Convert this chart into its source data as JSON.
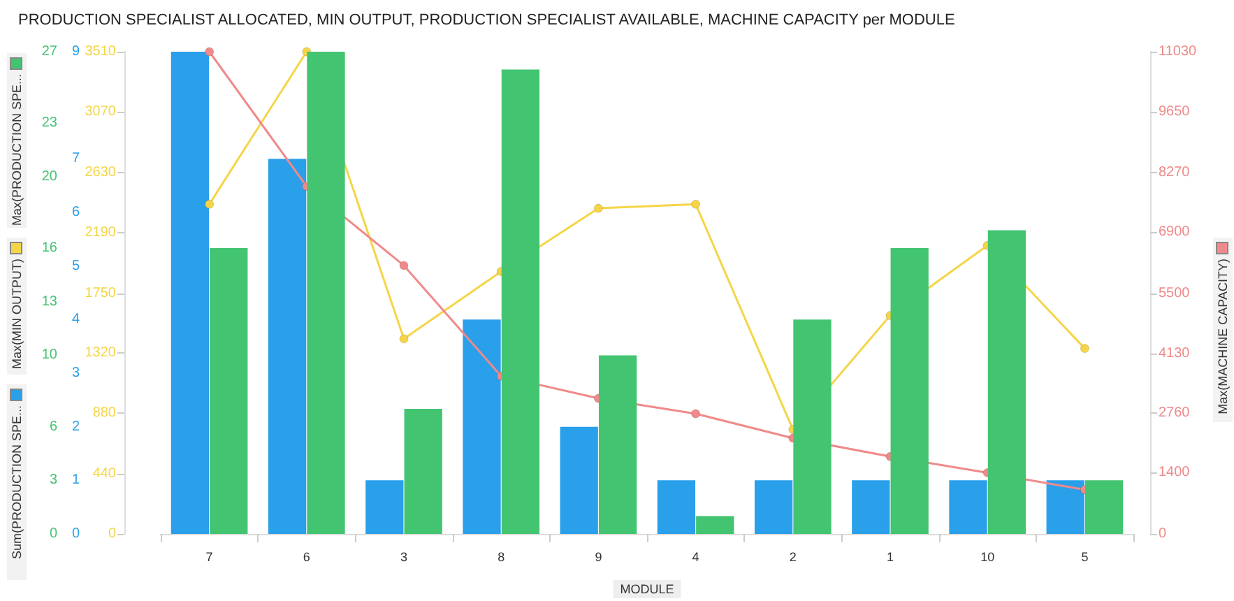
{
  "chart_data": [
    {
      "type": "bar",
      "title": "PRODUCTION SPECIALIST ALLOCATED, MIN OUTPUT, PRODUCTION SPECIALIST AVAILABLE, MACHINE CAPACITY per MODULE",
      "xlabel": "MODULE",
      "categories": [
        "7",
        "6",
        "3",
        "8",
        "9",
        "4",
        "2",
        "1",
        "10",
        "5"
      ],
      "series": [
        {
          "name": "Sum(PRODUCTION SPE...",
          "color": "#2a9fea",
          "values": [
            9,
            7,
            1,
            4,
            2,
            1,
            1,
            1,
            1,
            1
          ]
        },
        {
          "name": "Max(MIN OUTPUT)",
          "type": "line",
          "axis": "y3",
          "color": "#f5d547",
          "values": [
            2400,
            3510,
            1420,
            1910,
            2370,
            2400,
            760,
            1590,
            2100,
            1350
          ]
        },
        {
          "name": "Max(MACHINE CAPACITY)",
          "type": "line",
          "axis": "y2",
          "color": "#f08a8a",
          "values": [
            11030,
            7950,
            6140,
            3610,
            3100,
            2750,
            2190,
            1770,
            1400,
            1010
          ]
        }
      ],
      "ylim": [
        0,
        9
      ],
      "yticks": [
        0,
        1,
        2,
        3,
        4,
        5,
        6,
        7,
        9
      ],
      "y2lim": [
        0,
        11030
      ],
      "y2ticks": [
        0,
        1400,
        2760,
        4130,
        5500,
        6900,
        8270,
        9650,
        11030
      ],
      "y3lim": [
        0,
        3510
      ],
      "y3ticks": [
        0,
        440,
        880,
        1320,
        1750,
        2190,
        2630,
        3070,
        3510
      ],
      "legend": "left",
      "marker": "circle",
      "line_style": "solid"
    },
    {
      "type": "bar",
      "categories": [
        "7",
        "6",
        "3",
        "8",
        "9",
        "4",
        "2",
        "1",
        "10",
        "5"
      ],
      "series": [
        {
          "name": "Max(PRODUCTION SPE...",
          "color": "#43c471",
          "values": [
            16,
            27,
            7,
            26,
            10,
            1,
            12,
            16,
            17,
            3
          ]
        }
      ],
      "ylim": [
        0,
        27
      ],
      "yticks": [
        0,
        3,
        6,
        10,
        13,
        16,
        20,
        23,
        27
      ],
      "tick_labels": "y",
      "legend": "left"
    }
  ]
}
